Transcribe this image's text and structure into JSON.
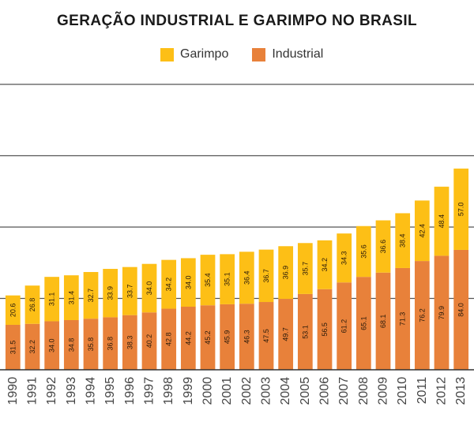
{
  "chart_data": {
    "type": "bar",
    "stacked": true,
    "title": "GERAÇÃO INDUSTRIAL E GARIMPO NO BRASIL",
    "legend": [
      "Garimpo",
      "Industrial"
    ],
    "legend_placement": "top-center",
    "colors": {
      "Garimpo": "#FDBF16",
      "Industrial": "#E8813A"
    },
    "ylim": [
      0,
      200
    ],
    "gridlines": [
      50,
      100,
      150,
      200
    ],
    "categories": [
      "1990",
      "1991",
      "1992",
      "1993",
      "1994",
      "1995",
      "1996",
      "1997",
      "1998",
      "1999",
      "2000",
      "2001",
      "2002",
      "2003",
      "2004",
      "2005",
      "2006",
      "2007",
      "2008",
      "2009",
      "2010",
      "2011",
      "2012",
      "2013"
    ],
    "series": [
      {
        "name": "Industrial",
        "values": [
          31.5,
          32.2,
          34.0,
          34.8,
          35.8,
          36.8,
          38.3,
          40.2,
          42.8,
          44.2,
          45.2,
          45.9,
          46.3,
          47.5,
          49.7,
          53.1,
          56.5,
          61.2,
          65.1,
          68.1,
          71.3,
          76.2,
          79.9,
          84
        ]
      },
      {
        "name": "Garimpo",
        "values": [
          20.6,
          26.8,
          31.1,
          31.4,
          32.7,
          33.9,
          33.7,
          34.0,
          34.2,
          34.0,
          35.4,
          35.1,
          36.4,
          36.7,
          36.9,
          35.7,
          34.2,
          34.3,
          35.6,
          36.6,
          38.4,
          42.4,
          48.4,
          57
        ]
      }
    ]
  }
}
